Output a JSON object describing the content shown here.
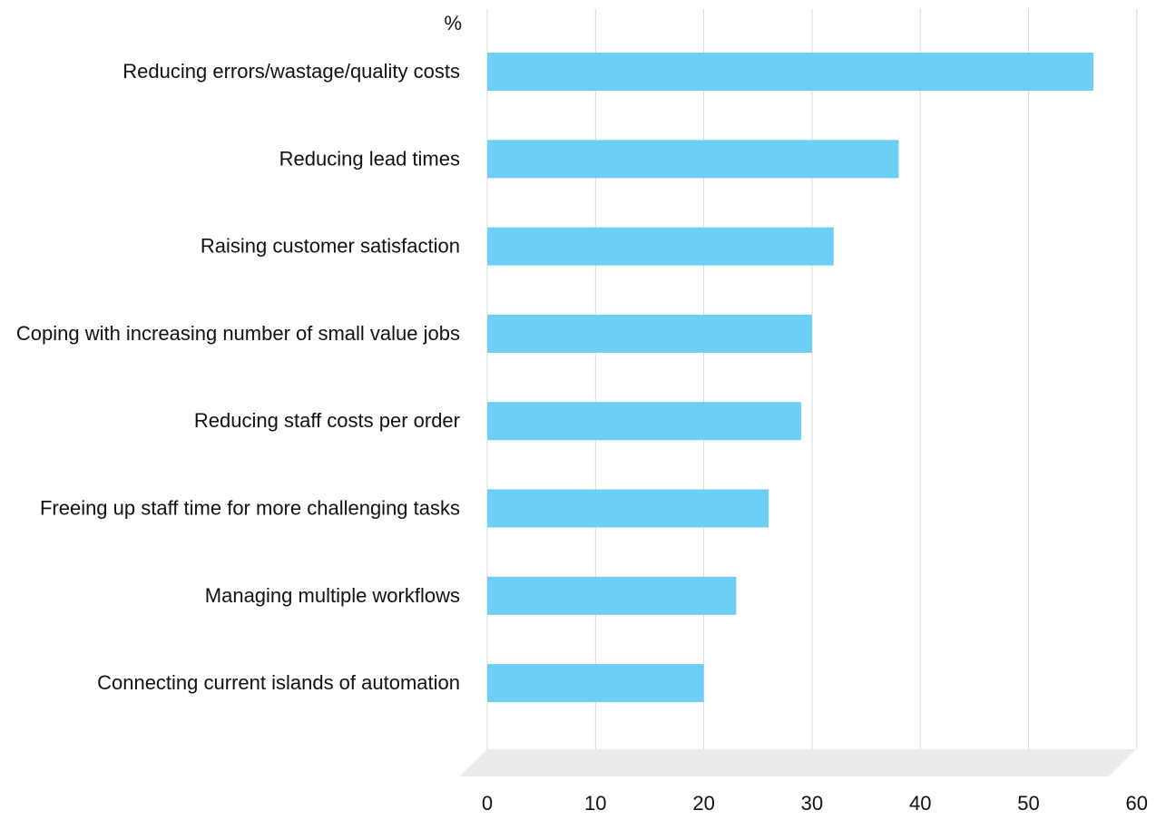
{
  "chart_data": {
    "type": "bar",
    "orientation": "horizontal",
    "unit_label": "%",
    "categories": [
      "Reducing errors/wastage/quality costs",
      "Reducing lead times",
      "Raising customer satisfaction",
      "Coping with increasing number of small value jobs",
      "Reducing staff costs per order",
      "Freeing up staff time for more challenging tasks",
      "Managing multiple workflows",
      "Connecting current islands of automation"
    ],
    "series": [
      {
        "values": [
          56,
          38,
          32,
          30,
          29,
          26,
          23,
          20
        ],
        "color": "#6dcff6"
      }
    ],
    "xlim": [
      0,
      60
    ],
    "x_ticks": [
      0,
      10,
      20,
      30,
      40,
      50,
      60
    ],
    "grid": true,
    "legend": "none"
  }
}
